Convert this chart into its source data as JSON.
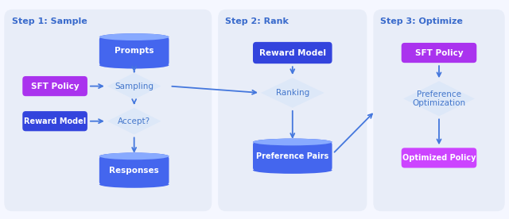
{
  "bg_color": "#f5f7ff",
  "panel_color": "#e8edf8",
  "step1_title": "Step 1: Sample",
  "step2_title": "Step 2: Rank",
  "step3_title": "Step 3: Optimize",
  "step_title_color": "#3a6bcc",
  "box_blue": "#3355dd",
  "box_purple_bright": "#aa44ee",
  "box_purple_dark": "#8833cc",
  "box_purple_light": "#cc55ff",
  "diamond_fill": "#dde8f8",
  "diamond_text": "#4477cc",
  "cylinder_body": "#4466ee",
  "cylinder_top": "#88aaff",
  "arrow_color": "#4477dd",
  "white": "#ffffff"
}
